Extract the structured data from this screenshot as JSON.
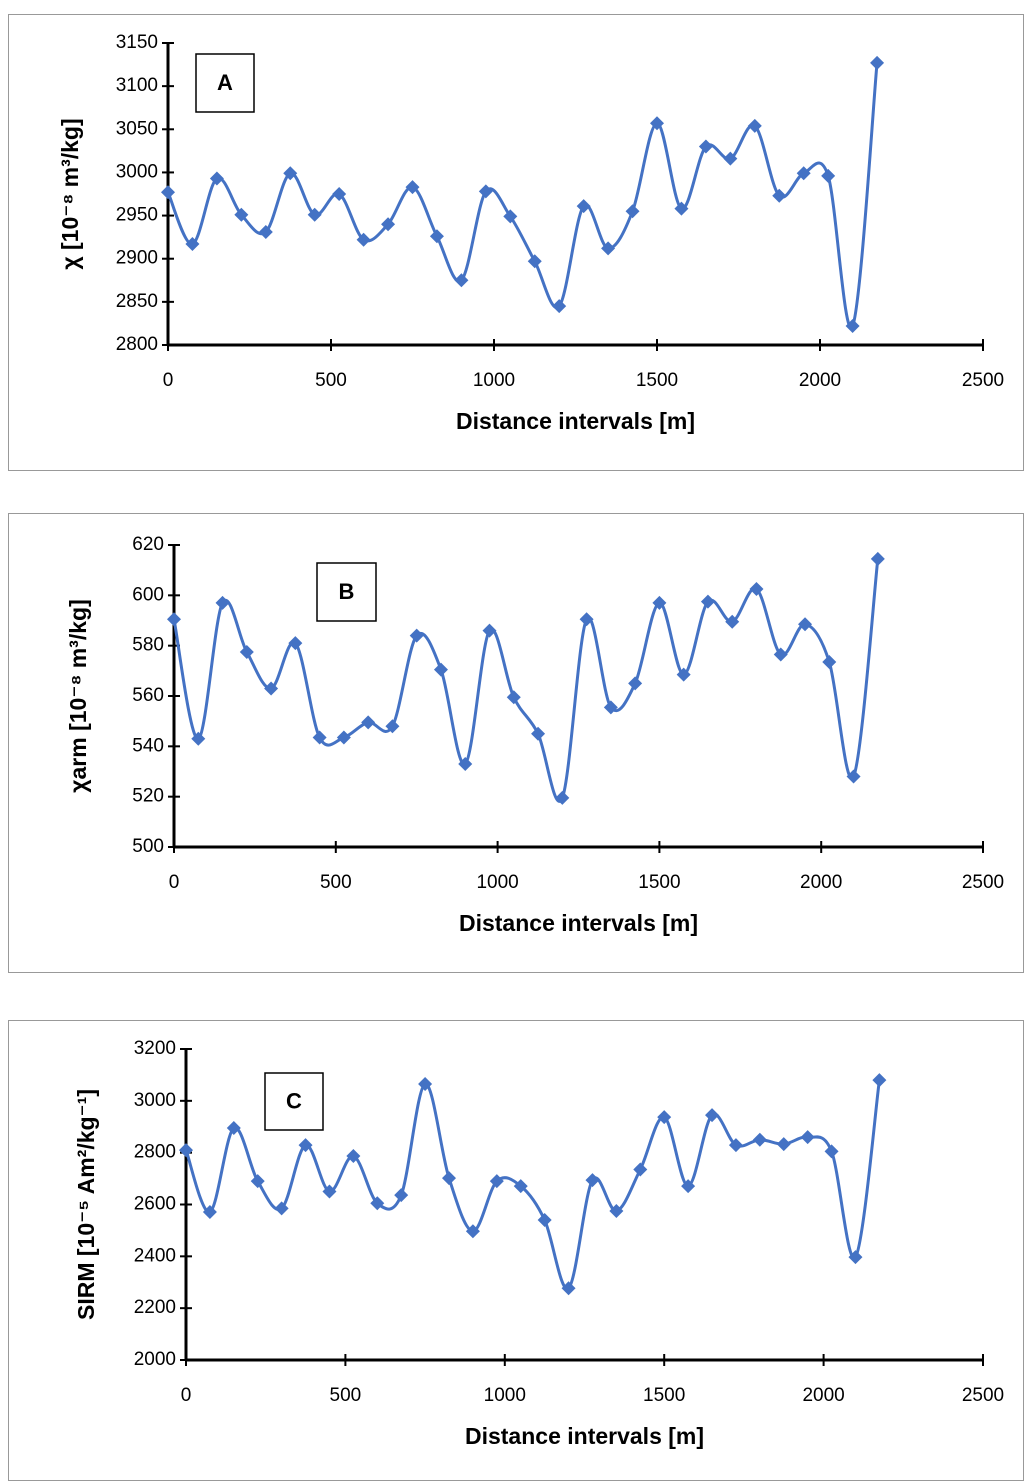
{
  "chart_data": [
    {
      "type": "line",
      "annotation": "A",
      "xlabel": "Distance intervals [m]",
      "ylabel": "χ [10⁻⁸ m³/kg]",
      "color": "#4472c4",
      "x": [
        0,
        75,
        150,
        225,
        300,
        375,
        450,
        525,
        600,
        675,
        750,
        825,
        900,
        975,
        1050,
        1125,
        1200,
        1275,
        1350,
        1425,
        1500,
        1575,
        1650,
        1725,
        1800,
        1875,
        1950,
        2025,
        2100,
        2175
      ],
      "values": [
        2977,
        2917,
        2993,
        2951,
        2931,
        2999,
        2951,
        2975,
        2922,
        2940,
        2983,
        2926,
        2875,
        2978,
        2949,
        2897,
        2845,
        2961,
        2912,
        2955,
        3057,
        2958,
        3030,
        3016,
        3054,
        2973,
        2999,
        2996,
        2822,
        3127
      ],
      "xlim": [
        0,
        2500
      ],
      "xticks": [
        0,
        500,
        1000,
        1500,
        2000,
        2500
      ],
      "ylim": [
        2800,
        3150
      ],
      "yticks": [
        2800,
        2850,
        2900,
        2950,
        3000,
        3050,
        3100,
        3150
      ]
    },
    {
      "type": "line",
      "annotation": "B",
      "xlabel": "Distance intervals [m]",
      "ylabel": "χarm [10⁻⁸ m³/kg]",
      "color": "#4472c4",
      "x": [
        0,
        75,
        150,
        225,
        300,
        375,
        450,
        525,
        600,
        675,
        750,
        825,
        900,
        975,
        1050,
        1125,
        1200,
        1275,
        1350,
        1425,
        1500,
        1575,
        1650,
        1725,
        1800,
        1875,
        1950,
        2025,
        2100,
        2175
      ],
      "values": [
        590.5,
        543,
        597,
        577.5,
        563,
        581,
        543.5,
        543.5,
        549.5,
        548,
        584,
        570.5,
        533,
        586,
        559.5,
        545,
        519.5,
        590.5,
        555.5,
        565,
        597,
        568.5,
        597.5,
        589.5,
        602.5,
        576.5,
        588.5,
        573.5,
        528,
        614.5
      ],
      "xlim": [
        0,
        2500
      ],
      "xticks": [
        0,
        500,
        1000,
        1500,
        2000,
        2500
      ],
      "ylim": [
        500,
        620
      ],
      "yticks": [
        500,
        520,
        540,
        560,
        580,
        600,
        620
      ]
    },
    {
      "type": "line",
      "annotation": "C",
      "xlabel": "Distance intervals [m]",
      "ylabel": "SIRM [10⁻⁵ Am²/kg⁻¹]",
      "color": "#4472c4",
      "x": [
        0,
        75,
        150,
        225,
        300,
        375,
        450,
        525,
        600,
        675,
        750,
        825,
        900,
        975,
        1050,
        1125,
        1200,
        1275,
        1350,
        1425,
        1500,
        1575,
        1650,
        1725,
        1800,
        1875,
        1950,
        2025,
        2100,
        2175
      ],
      "values": [
        2810,
        2571,
        2895,
        2690,
        2585,
        2829,
        2650,
        2787,
        2605,
        2636,
        3065,
        2702,
        2497,
        2690,
        2671,
        2540,
        2277,
        2694,
        2575,
        2735,
        2937,
        2671,
        2945,
        2829,
        2850,
        2833,
        2860,
        2805,
        2397,
        3080
      ],
      "xlim": [
        0,
        2500
      ],
      "xticks": [
        0,
        500,
        1000,
        1500,
        2000,
        2500
      ],
      "ylim": [
        2000,
        3200
      ],
      "yticks": [
        2000,
        2200,
        2400,
        2600,
        2800,
        3000,
        3200
      ]
    }
  ]
}
